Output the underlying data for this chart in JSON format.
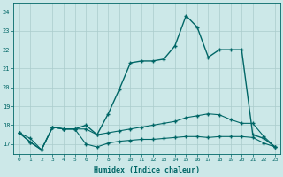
{
  "background_color": "#cce8e8",
  "grid_color": "#aacccc",
  "line_color": "#006666",
  "xlabel": "Humidex (Indice chaleur)",
  "xlim": [
    -0.5,
    23.5
  ],
  "ylim": [
    16.5,
    24.5
  ],
  "yticks": [
    17,
    18,
    19,
    20,
    21,
    22,
    23,
    24
  ],
  "xticks": [
    0,
    1,
    2,
    3,
    4,
    5,
    6,
    7,
    8,
    9,
    10,
    11,
    12,
    13,
    14,
    15,
    16,
    17,
    18,
    19,
    20,
    21,
    22,
    23
  ],
  "line1_x": [
    0,
    1,
    2,
    3,
    4,
    5,
    6,
    7,
    8,
    9,
    10,
    11,
    12,
    13,
    14,
    15,
    16,
    17,
    18,
    19,
    20,
    21,
    22,
    23
  ],
  "line1_y": [
    17.6,
    17.1,
    16.7,
    17.9,
    17.8,
    17.8,
    17.0,
    16.85,
    17.05,
    17.15,
    17.2,
    17.25,
    17.25,
    17.3,
    17.35,
    17.4,
    17.4,
    17.35,
    17.4,
    17.4,
    17.4,
    17.35,
    17.05,
    16.85
  ],
  "line2_x": [
    0,
    1,
    2,
    3,
    4,
    5,
    6,
    7,
    8,
    9,
    10,
    11,
    12,
    13,
    14,
    15,
    16,
    17,
    18,
    19,
    20,
    21,
    22,
    23
  ],
  "line2_y": [
    17.6,
    17.1,
    16.7,
    17.9,
    17.8,
    17.8,
    18.0,
    17.5,
    18.6,
    19.9,
    21.3,
    21.4,
    21.4,
    21.5,
    22.2,
    23.8,
    23.2,
    21.6,
    22.0,
    22.0,
    22.0,
    17.5,
    17.3,
    16.85
  ],
  "line3_x": [
    0,
    1,
    2,
    3,
    4,
    5,
    6,
    7,
    8,
    9,
    10,
    11,
    12,
    13,
    14,
    15,
    16,
    17,
    18,
    19,
    20,
    21,
    22,
    23
  ],
  "line3_y": [
    17.6,
    17.3,
    16.7,
    17.9,
    17.8,
    17.8,
    17.8,
    17.5,
    17.6,
    17.7,
    17.8,
    17.9,
    18.0,
    18.1,
    18.2,
    18.4,
    18.5,
    18.6,
    18.55,
    18.3,
    18.1,
    18.1,
    17.4,
    16.85
  ]
}
